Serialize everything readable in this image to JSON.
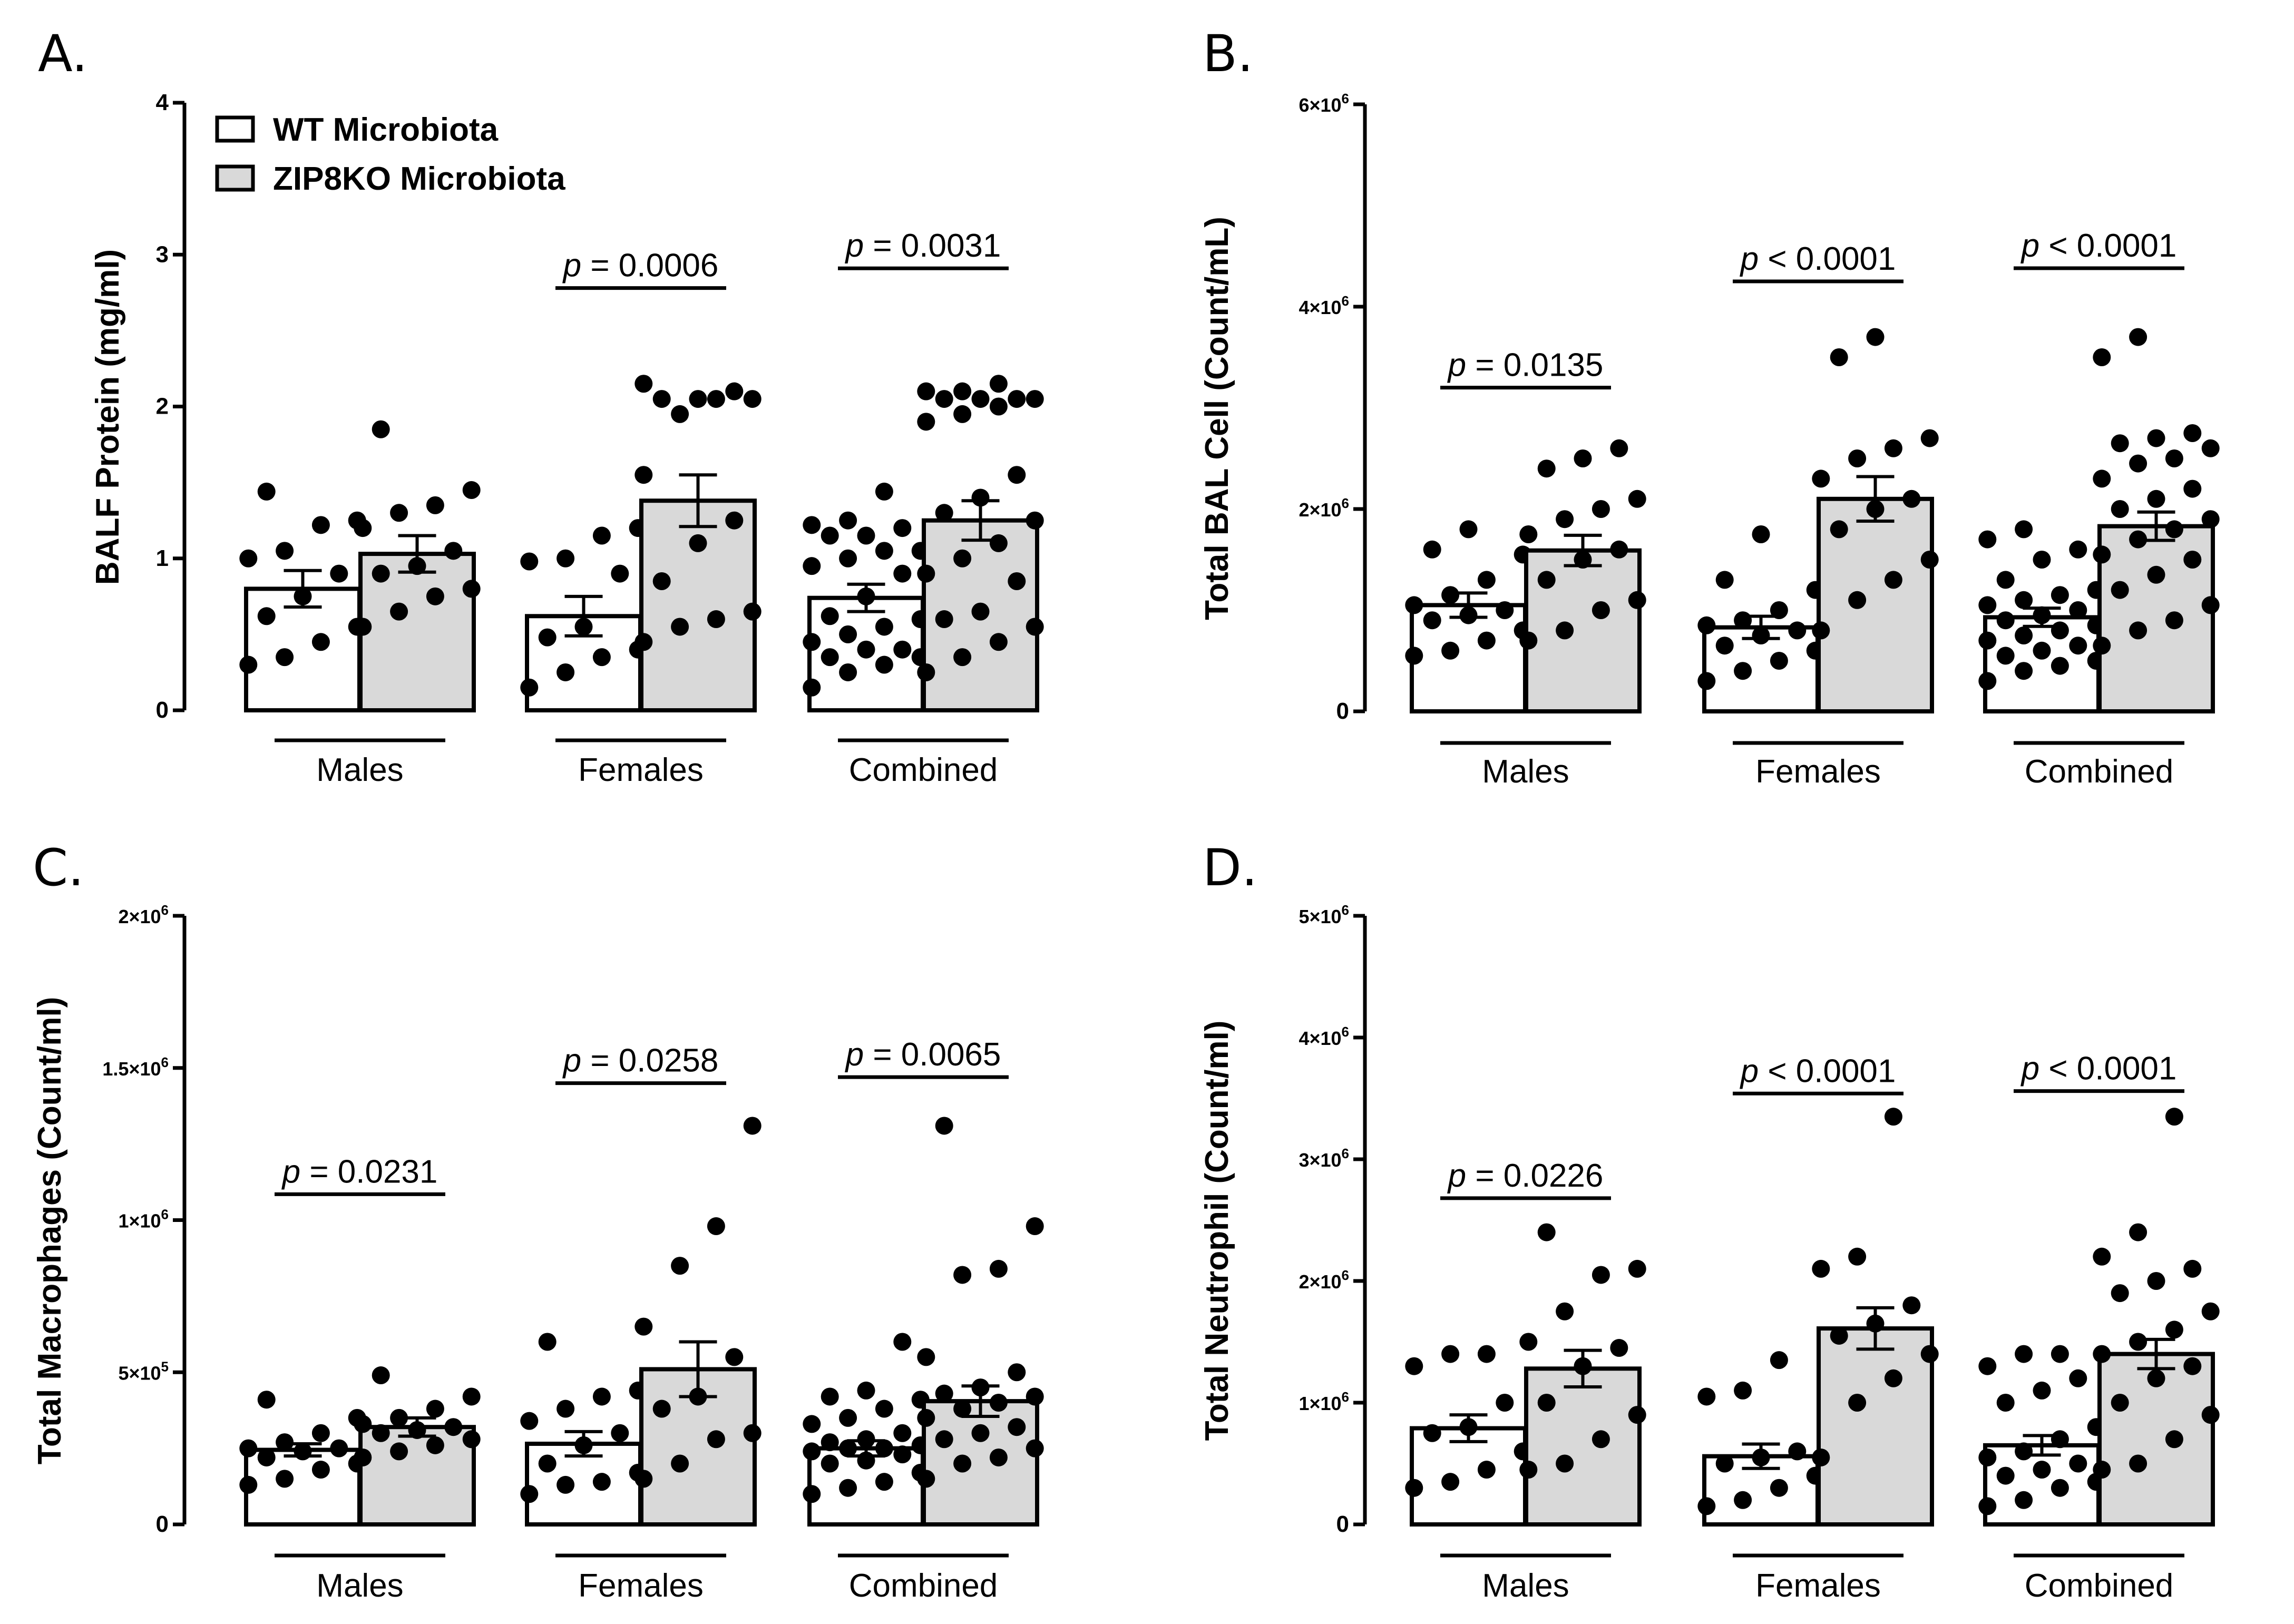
{
  "series_names": [
    "WT Microbiota",
    "ZIP8KO Microbiota"
  ],
  "colors": {
    "wt": "#ffffff",
    "ko": "#d9d9d9",
    "stroke": "#000000",
    "dot": "#000000"
  },
  "chart_data": [
    {
      "type": "bar",
      "panel": "A.",
      "ylabel": "BALF Protein  (mg/ml)",
      "ylim": [
        0,
        4
      ],
      "yticks": [
        0,
        1,
        2,
        3,
        4
      ],
      "ytick_labels": [
        {
          "text": "0"
        },
        {
          "text": "1"
        },
        {
          "text": "2"
        },
        {
          "text": "3"
        },
        {
          "text": "4"
        }
      ],
      "categories": [
        "Males",
        "Females",
        "Combined"
      ],
      "legend": true,
      "series": [
        {
          "name": "WT Microbiota",
          "values": [
            0.8,
            0.62,
            0.74
          ],
          "sem": [
            0.12,
            0.13,
            0.09
          ],
          "points": [
            [
              0.3,
              0.35,
              0.45,
              0.55,
              0.62,
              0.75,
              0.9,
              1.0,
              1.05,
              1.22,
              1.25,
              1.44
            ],
            [
              0.15,
              0.25,
              0.35,
              0.4,
              0.48,
              0.55,
              0.9,
              0.98,
              1.0,
              1.15,
              1.2
            ],
            [
              0.15,
              0.25,
              0.3,
              0.35,
              0.35,
              0.4,
              0.4,
              0.45,
              0.5,
              0.55,
              0.6,
              0.62,
              0.75,
              0.9,
              0.95,
              1.0,
              1.05,
              1.05,
              1.15,
              1.15,
              1.2,
              1.22,
              1.25,
              1.44
            ]
          ]
        },
        {
          "name": "ZIP8KO Microbiota",
          "values": [
            1.03,
            1.38,
            1.25
          ],
          "sem": [
            0.12,
            0.17,
            0.13
          ],
          "points": [
            [
              0.55,
              0.65,
              0.75,
              0.8,
              0.9,
              0.95,
              1.05,
              1.2,
              1.3,
              1.35,
              1.45,
              1.85
            ],
            [
              0.45,
              0.55,
              0.6,
              0.65,
              0.85,
              1.1,
              1.25,
              1.55,
              1.95,
              2.05,
              2.05,
              2.05,
              2.05,
              2.1,
              2.15
            ],
            [
              0.25,
              0.35,
              0.45,
              0.55,
              0.6,
              0.65,
              0.85,
              0.9,
              1.0,
              1.1,
              1.25,
              1.3,
              1.4,
              1.55,
              1.9,
              1.95,
              2.0,
              2.05,
              2.05,
              2.05,
              2.05,
              2.1,
              2.1,
              2.15
            ]
          ]
        }
      ],
      "annotations": [
        {
          "group": 1,
          "prefix": "p",
          "text": " = 0.0006",
          "y": 2.78
        },
        {
          "group": 2,
          "prefix": "p",
          "text": " = 0.0031",
          "y": 2.91
        }
      ]
    },
    {
      "type": "bar",
      "panel": "B.",
      "ylabel": "Total BAL Cell (Count/mL)",
      "ylim": [
        0,
        6000000
      ],
      "yticks": [
        0,
        2000000,
        4000000,
        6000000
      ],
      "ytick_labels": [
        {
          "text": "0"
        },
        {
          "mant": "2×10",
          "exp": "6"
        },
        {
          "mant": "4×10",
          "exp": "6"
        },
        {
          "mant": "6×10",
          "exp": "6"
        }
      ],
      "categories": [
        "Males",
        "Females",
        "Combined"
      ],
      "legend": false,
      "series": [
        {
          "name": "WT Microbiota",
          "values": [
            1050000,
            830000,
            930000
          ],
          "sem": [
            120000,
            110000,
            90000
          ],
          "points": [
            [
              550000,
              600000,
              700000,
              800000,
              900000,
              950000,
              1000000,
              1050000,
              1150000,
              1300000,
              1550000,
              1600000,
              1800000
            ],
            [
              300000,
              400000,
              500000,
              600000,
              650000,
              750000,
              800000,
              850000,
              900000,
              1000000,
              1200000,
              1300000,
              1750000
            ],
            [
              300000,
              400000,
              450000,
              500000,
              550000,
              600000,
              650000,
              700000,
              750000,
              800000,
              850000,
              900000,
              950000,
              1000000,
              1050000,
              1100000,
              1150000,
              1200000,
              1300000,
              1500000,
              1600000,
              1700000,
              1800000
            ]
          ]
        },
        {
          "name": "ZIP8KO Microbiota",
          "values": [
            1590000,
            2100000,
            1830000
          ],
          "sem": [
            150000,
            220000,
            140000
          ],
          "points": [
            [
              700000,
              800000,
              1000000,
              1100000,
              1300000,
              1500000,
              1600000,
              1750000,
              1900000,
              2000000,
              2100000,
              2400000,
              2500000,
              2600000
            ],
            [
              800000,
              1100000,
              1300000,
              1500000,
              1800000,
              2000000,
              2100000,
              2300000,
              2500000,
              2600000,
              2700000,
              3500000,
              3700000
            ],
            [
              650000,
              800000,
              900000,
              1050000,
              1200000,
              1350000,
              1500000,
              1550000,
              1700000,
              1800000,
              1900000,
              2000000,
              2100000,
              2200000,
              2300000,
              2450000,
              2500000,
              2600000,
              2650000,
              2700000,
              2750000,
              3500000,
              3700000
            ]
          ]
        }
      ],
      "annotations": [
        {
          "group": 0,
          "prefix": "p",
          "text": " = 0.0135",
          "y": 3200000
        },
        {
          "group": 1,
          "prefix": "p",
          "text": " < 0.0001",
          "y": 4250000
        },
        {
          "group": 2,
          "prefix": "p",
          "text": " < 0.0001",
          "y": 4380000
        }
      ]
    },
    {
      "type": "bar",
      "panel": "C.",
      "ylabel": "Total Macrophages (Count/ml)",
      "ylim": [
        0,
        2000000
      ],
      "yticks": [
        0,
        500000,
        1000000,
        1500000,
        2000000
      ],
      "ytick_labels": [
        {
          "text": "0"
        },
        {
          "mant": "5×10",
          "exp": "5"
        },
        {
          "mant": "1×10",
          "exp": "6"
        },
        {
          "mant": "1.5×10",
          "exp": "6"
        },
        {
          "mant": "2×10",
          "exp": "6"
        }
      ],
      "categories": [
        "Males",
        "Females",
        "Combined"
      ],
      "legend": false,
      "series": [
        {
          "name": "WT Microbiota",
          "values": [
            245000,
            265000,
            250000
          ],
          "sem": [
            20000,
            40000,
            25000
          ],
          "points": [
            [
              130000,
              150000,
              180000,
              200000,
              220000,
              240000,
              250000,
              250000,
              270000,
              300000,
              350000,
              410000
            ],
            [
              100000,
              130000,
              140000,
              170000,
              200000,
              260000,
              300000,
              340000,
              380000,
              420000,
              440000,
              600000
            ],
            [
              100000,
              120000,
              140000,
              170000,
              200000,
              210000,
              230000,
              240000,
              250000,
              250000,
              260000,
              270000,
              280000,
              300000,
              330000,
              350000,
              380000,
              410000,
              420000,
              440000,
              600000
            ]
          ]
        },
        {
          "name": "ZIP8KO Microbiota",
          "values": [
            320000,
            510000,
            405000
          ],
          "sem": [
            30000,
            90000,
            50000
          ],
          "points": [
            [
              220000,
              240000,
              260000,
              280000,
              300000,
              310000,
              320000,
              330000,
              350000,
              380000,
              420000,
              490000
            ],
            [
              150000,
              200000,
              280000,
              300000,
              380000,
              420000,
              550000,
              650000,
              850000,
              980000,
              1310000
            ],
            [
              150000,
              200000,
              220000,
              250000,
              280000,
              300000,
              320000,
              350000,
              380000,
              400000,
              420000,
              430000,
              450000,
              500000,
              550000,
              820000,
              840000,
              980000,
              1310000
            ]
          ]
        }
      ],
      "annotations": [
        {
          "group": 0,
          "prefix": "p",
          "text": " = 0.0231",
          "y": 1085000
        },
        {
          "group": 1,
          "prefix": "p",
          "text": " = 0.0258",
          "y": 1450000
        },
        {
          "group": 2,
          "prefix": "p",
          "text": " = 0.0065",
          "y": 1470000
        }
      ]
    },
    {
      "type": "bar",
      "panel": "D.",
      "ylabel": "Total Neutrophil (Count/ml)",
      "ylim": [
        0,
        5000000
      ],
      "yticks": [
        0,
        1000000,
        2000000,
        3000000,
        4000000,
        5000000
      ],
      "ytick_labels": [
        {
          "text": "0"
        },
        {
          "mant": "1×10",
          "exp": "6"
        },
        {
          "mant": "2×10",
          "exp": "6"
        },
        {
          "mant": "3×10",
          "exp": "6"
        },
        {
          "mant": "4×10",
          "exp": "6"
        },
        {
          "mant": "5×10",
          "exp": "6"
        }
      ],
      "categories": [
        "Males",
        "Females",
        "Combined"
      ],
      "legend": false,
      "series": [
        {
          "name": "WT Microbiota",
          "values": [
            790000,
            560000,
            650000
          ],
          "sem": [
            110000,
            100000,
            80000
          ],
          "points": [
            [
              300000,
              350000,
              450000,
              600000,
              750000,
              800000,
              1000000,
              1300000,
              1400000,
              1400000
            ],
            [
              150000,
              200000,
              300000,
              400000,
              500000,
              550000,
              600000,
              1050000,
              1100000,
              1350000
            ],
            [
              150000,
              200000,
              300000,
              350000,
              400000,
              450000,
              500000,
              550000,
              600000,
              700000,
              800000,
              1000000,
              1100000,
              1200000,
              1300000,
              1400000,
              1400000
            ]
          ]
        },
        {
          "name": "ZIP8KO Microbiota",
          "values": [
            1280000,
            1610000,
            1400000
          ],
          "sem": [
            150000,
            170000,
            120000
          ],
          "points": [
            [
              450000,
              500000,
              700000,
              900000,
              1000000,
              1300000,
              1450000,
              1500000,
              1750000,
              2050000,
              2100000,
              2400000
            ],
            [
              550000,
              1000000,
              1200000,
              1400000,
              1550000,
              1650000,
              1800000,
              2100000,
              2200000,
              3350000
            ],
            [
              450000,
              500000,
              700000,
              900000,
              1000000,
              1200000,
              1300000,
              1400000,
              1500000,
              1600000,
              1750000,
              1900000,
              2000000,
              2100000,
              2200000,
              2400000,
              3350000
            ]
          ]
        }
      ],
      "annotations": [
        {
          "group": 0,
          "prefix": "p",
          "text": " = 0.0226",
          "y": 2680000
        },
        {
          "group": 1,
          "prefix": "p",
          "text": " < 0.0001",
          "y": 3540000
        },
        {
          "group": 2,
          "prefix": "p",
          "text": " < 0.0001",
          "y": 3560000
        }
      ]
    }
  ]
}
